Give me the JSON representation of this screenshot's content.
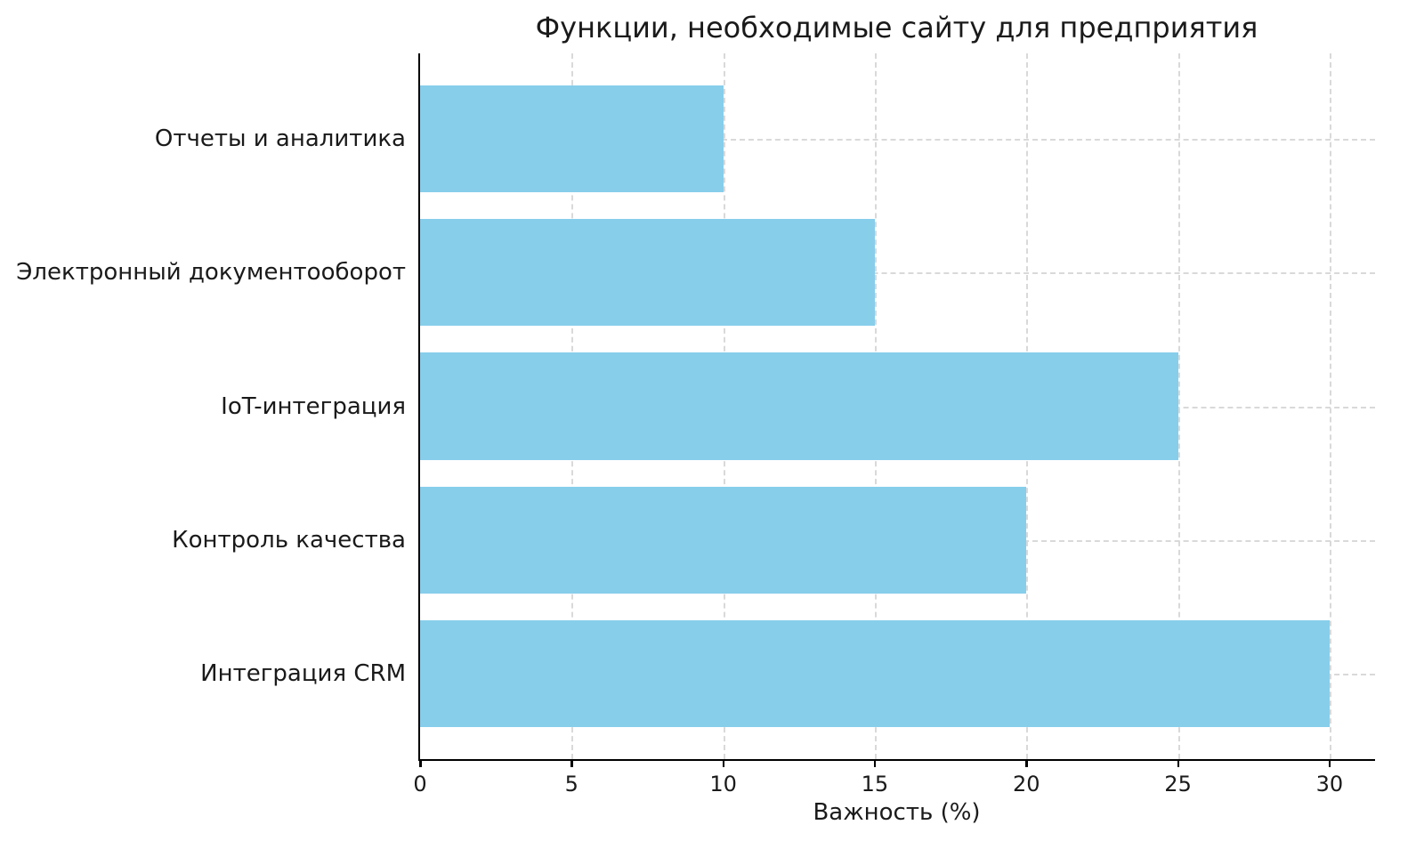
{
  "chart_data": {
    "type": "bar",
    "orientation": "horizontal",
    "title": "Функции, необходимые сайту для предприятия",
    "xlabel": "Важность (%)",
    "ylabel": "",
    "categories": [
      "Отчеты и аналитика",
      "Электронный документооборот",
      "IoT-интеграция",
      "Контроль качества",
      "Интеграция CRM"
    ],
    "values": [
      10,
      15,
      25,
      20,
      30
    ],
    "xticks": [
      0,
      5,
      10,
      15,
      20,
      25,
      30
    ],
    "xlim": [
      0,
      31.5
    ],
    "bar_color": "#87CEEB",
    "grid": "dashed",
    "grid_color": "#d9d9d9",
    "legend": "none",
    "background": "#ffffff"
  }
}
